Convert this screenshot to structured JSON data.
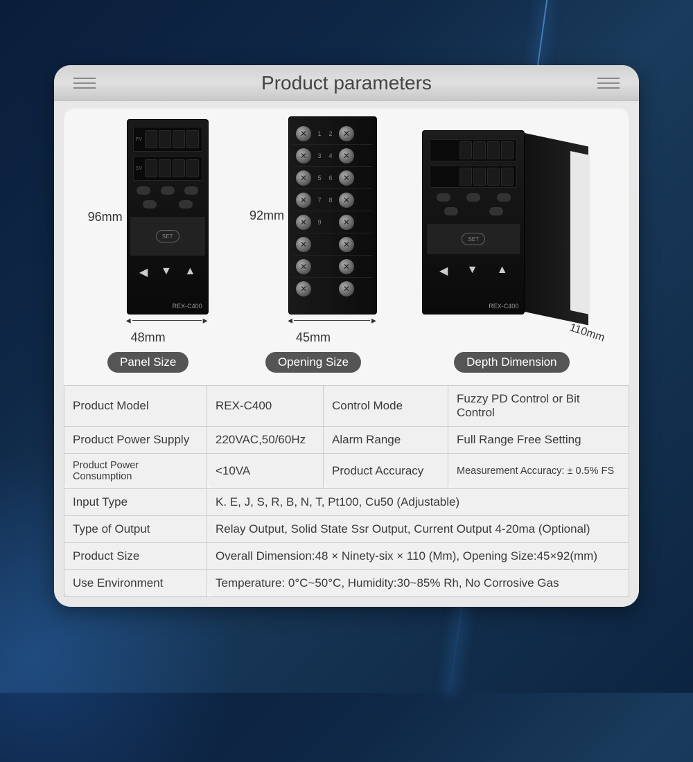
{
  "header": {
    "title": "Product parameters"
  },
  "diagrams": {
    "panel": {
      "height_label": "96mm",
      "width_label": "48mm",
      "pill": "Panel Size",
      "model": "REX-C400",
      "set_label": "SET"
    },
    "opening": {
      "height_label": "92mm",
      "width_label": "45mm",
      "pill": "Opening Size"
    },
    "depth": {
      "depth_label": "110mm",
      "pill": "Depth Dimension",
      "model": "REX-C400",
      "set_label": "SET"
    }
  },
  "specs": {
    "rows_top": [
      {
        "l1": "Product Model",
        "v1": "REX-C400",
        "l2": "Control Mode",
        "v2": "Fuzzy PD Control or Bit Control"
      },
      {
        "l1": "Product Power Supply",
        "v1": "220VAC,50/60Hz",
        "l2": "Alarm Range",
        "v2": "Full Range Free Setting"
      },
      {
        "l1": "Product Power Consumption",
        "v1": "<10VA",
        "l2": "Product Accuracy",
        "v2": "Measurement Accuracy: ± 0.5% FS",
        "small": true
      }
    ],
    "rows_bottom": [
      {
        "l": "Input Type",
        "v": "K. E, J, S, R, B, N, T, Pt100, Cu50 (Adjustable)"
      },
      {
        "l": "Type of Output",
        "v": "Relay Output, Solid State Ssr Output, Current Output 4-20ma (Optional)"
      },
      {
        "l": "Product Size",
        "v": "Overall Dimension:48 × Ninety-six × 110 (Mm), Opening Size:45×92(mm)"
      },
      {
        "l": "Use Environment",
        "v": "Temperature: 0°C~50°C, Humidity:30~85% Rh, No Corrosive Gas"
      }
    ]
  },
  "colors": {
    "card_bg": "#e8e8e8",
    "pill_bg": "#555555",
    "pill_fg": "#ffffff",
    "table_border": "#cccccc",
    "text": "#3a3a3a"
  }
}
